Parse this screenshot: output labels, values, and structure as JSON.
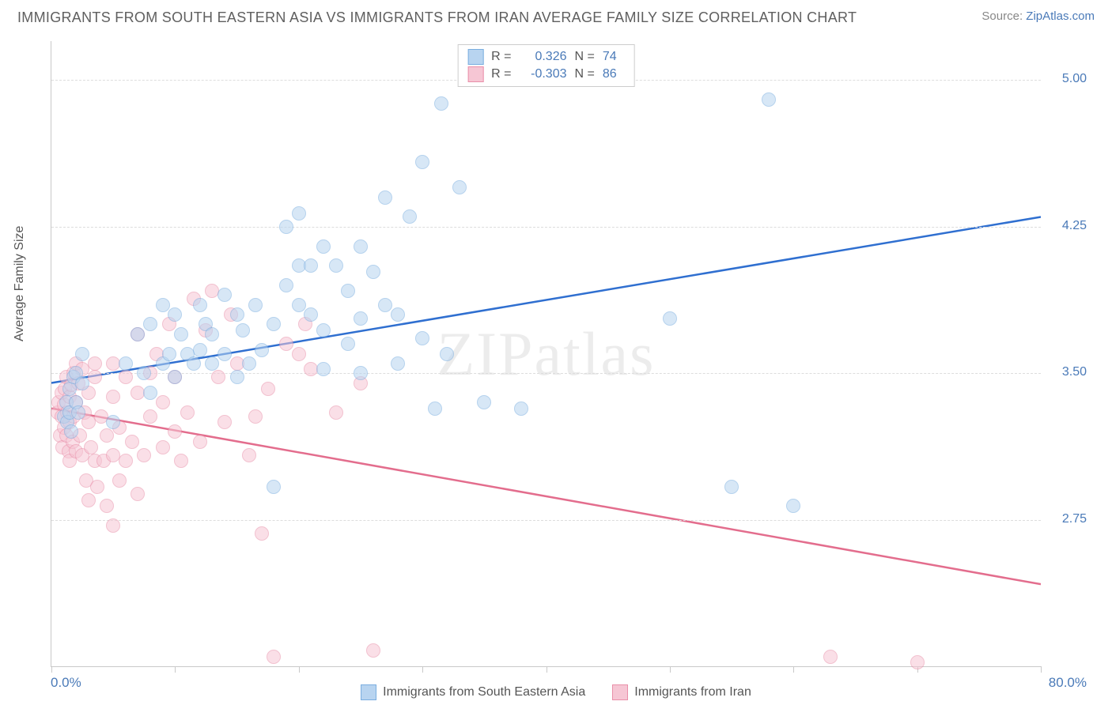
{
  "header": {
    "title": "IMMIGRANTS FROM SOUTH EASTERN ASIA VS IMMIGRANTS FROM IRAN AVERAGE FAMILY SIZE CORRELATION CHART",
    "source_prefix": "Source: ",
    "source_link": "ZipAtlas.com"
  },
  "axes": {
    "y_label": "Average Family Size",
    "x_min_label": "0.0%",
    "x_max_label": "80.0%",
    "x_min": 0,
    "x_max": 80,
    "y_min": 2.0,
    "y_max": 5.2,
    "y_ticks": [
      2.75,
      3.5,
      4.25,
      5.0
    ],
    "y_tick_labels": [
      "2.75",
      "3.50",
      "4.25",
      "5.00"
    ],
    "x_ticks_pct": [
      0,
      10,
      20,
      30,
      40,
      50,
      60,
      70,
      80
    ],
    "grid_color": "#dddddd",
    "axis_color": "#c9c9c9",
    "tick_label_color": "#4a7ab8"
  },
  "watermark": "ZIPatlas",
  "series": {
    "sea": {
      "label": "Immigrants from South Eastern Asia",
      "fill_color": "#b8d4f0",
      "stroke_color": "#7aaee0",
      "line_color": "#2f6fd0",
      "fill_opacity": 0.55,
      "marker_radius": 9,
      "R": "0.326",
      "N": "74",
      "trend": {
        "x1": 0,
        "y1": 3.45,
        "x2": 80,
        "y2": 4.3
      },
      "points": [
        [
          1.0,
          3.28
        ],
        [
          1.2,
          3.35
        ],
        [
          1.3,
          3.25
        ],
        [
          1.5,
          3.3
        ],
        [
          1.5,
          3.42
        ],
        [
          1.6,
          3.2
        ],
        [
          1.8,
          3.48
        ],
        [
          2.0,
          3.35
        ],
        [
          2.0,
          3.5
        ],
        [
          2.2,
          3.3
        ],
        [
          2.5,
          3.45
        ],
        [
          2.5,
          3.6
        ],
        [
          5.0,
          3.25
        ],
        [
          6.0,
          3.55
        ],
        [
          7.0,
          3.7
        ],
        [
          7.5,
          3.5
        ],
        [
          8.0,
          3.4
        ],
        [
          8.0,
          3.75
        ],
        [
          9.0,
          3.55
        ],
        [
          9.0,
          3.85
        ],
        [
          9.5,
          3.6
        ],
        [
          10.0,
          3.48
        ],
        [
          10.0,
          3.8
        ],
        [
          10.5,
          3.7
        ],
        [
          11.0,
          3.6
        ],
        [
          11.5,
          3.55
        ],
        [
          12.0,
          3.62
        ],
        [
          12.0,
          3.85
        ],
        [
          12.5,
          3.75
        ],
        [
          13.0,
          3.55
        ],
        [
          13.0,
          3.7
        ],
        [
          14.0,
          3.6
        ],
        [
          14.0,
          3.9
        ],
        [
          15.0,
          3.48
        ],
        [
          15.0,
          3.8
        ],
        [
          15.5,
          3.72
        ],
        [
          16.0,
          3.55
        ],
        [
          16.5,
          3.85
        ],
        [
          17.0,
          3.62
        ],
        [
          18.0,
          3.75
        ],
        [
          18.0,
          2.92
        ],
        [
          19.0,
          3.95
        ],
        [
          19.0,
          4.25
        ],
        [
          20.0,
          3.85
        ],
        [
          20.0,
          4.05
        ],
        [
          20.0,
          4.32
        ],
        [
          21.0,
          3.8
        ],
        [
          21.0,
          4.05
        ],
        [
          22.0,
          3.72
        ],
        [
          22.0,
          3.52
        ],
        [
          22.0,
          4.15
        ],
        [
          23.0,
          4.05
        ],
        [
          24.0,
          3.65
        ],
        [
          24.0,
          3.92
        ],
        [
          25.0,
          3.5
        ],
        [
          25.0,
          3.78
        ],
        [
          25.0,
          4.15
        ],
        [
          26.0,
          4.02
        ],
        [
          27.0,
          3.85
        ],
        [
          27.0,
          4.4
        ],
        [
          28.0,
          3.55
        ],
        [
          28.0,
          3.8
        ],
        [
          29.0,
          4.3
        ],
        [
          30.0,
          3.68
        ],
        [
          30.0,
          4.58
        ],
        [
          31.0,
          3.32
        ],
        [
          31.5,
          4.88
        ],
        [
          32.0,
          3.6
        ],
        [
          33.0,
          4.45
        ],
        [
          35.0,
          3.35
        ],
        [
          38.0,
          3.32
        ],
        [
          50.0,
          3.78
        ],
        [
          55.0,
          2.92
        ],
        [
          58.0,
          4.9
        ],
        [
          60.0,
          2.82
        ]
      ]
    },
    "iran": {
      "label": "Immigrants from Iran",
      "fill_color": "#f6c6d4",
      "stroke_color": "#e98fa9",
      "line_color": "#e36d8d",
      "fill_opacity": 0.55,
      "marker_radius": 9,
      "R": "-0.303",
      "N": "86",
      "trend": {
        "x1": 0,
        "y1": 3.32,
        "x2": 80,
        "y2": 2.42
      },
      "points": [
        [
          0.5,
          3.3
        ],
        [
          0.6,
          3.35
        ],
        [
          0.7,
          3.18
        ],
        [
          0.8,
          3.28
        ],
        [
          0.8,
          3.4
        ],
        [
          0.9,
          3.12
        ],
        [
          1.0,
          3.34
        ],
        [
          1.0,
          3.22
        ],
        [
          1.1,
          3.42
        ],
        [
          1.2,
          3.18
        ],
        [
          1.2,
          3.48
        ],
        [
          1.3,
          3.3
        ],
        [
          1.4,
          3.1
        ],
        [
          1.5,
          3.38
        ],
        [
          1.5,
          3.25
        ],
        [
          1.5,
          3.05
        ],
        [
          1.6,
          3.44
        ],
        [
          1.7,
          3.15
        ],
        [
          1.8,
          3.5
        ],
        [
          1.8,
          3.28
        ],
        [
          2.0,
          3.55
        ],
        [
          2.0,
          3.1
        ],
        [
          2.0,
          3.35
        ],
        [
          2.2,
          3.45
        ],
        [
          2.3,
          3.18
        ],
        [
          2.5,
          3.08
        ],
        [
          2.5,
          3.52
        ],
        [
          2.7,
          3.3
        ],
        [
          2.8,
          2.95
        ],
        [
          3.0,
          3.4
        ],
        [
          3.0,
          3.25
        ],
        [
          3.0,
          2.85
        ],
        [
          3.2,
          3.12
        ],
        [
          3.5,
          3.48
        ],
        [
          3.5,
          3.55
        ],
        [
          3.5,
          3.05
        ],
        [
          3.7,
          2.92
        ],
        [
          4.0,
          3.28
        ],
        [
          4.2,
          3.05
        ],
        [
          4.5,
          3.18
        ],
        [
          4.5,
          2.82
        ],
        [
          5.0,
          3.38
        ],
        [
          5.0,
          3.55
        ],
        [
          5.0,
          3.08
        ],
        [
          5.0,
          2.72
        ],
        [
          5.5,
          3.22
        ],
        [
          5.5,
          2.95
        ],
        [
          6.0,
          3.48
        ],
        [
          6.0,
          3.05
        ],
        [
          6.5,
          3.15
        ],
        [
          7.0,
          3.4
        ],
        [
          7.0,
          3.7
        ],
        [
          7.0,
          2.88
        ],
        [
          7.5,
          3.08
        ],
        [
          8.0,
          3.28
        ],
        [
          8.0,
          3.5
        ],
        [
          8.5,
          3.6
        ],
        [
          9.0,
          3.12
        ],
        [
          9.0,
          3.35
        ],
        [
          9.5,
          3.75
        ],
        [
          10.0,
          3.2
        ],
        [
          10.0,
          3.48
        ],
        [
          10.5,
          3.05
        ],
        [
          11.0,
          3.3
        ],
        [
          11.5,
          3.88
        ],
        [
          12.0,
          3.15
        ],
        [
          12.5,
          3.72
        ],
        [
          13.0,
          3.92
        ],
        [
          13.5,
          3.48
        ],
        [
          14.0,
          3.25
        ],
        [
          14.5,
          3.8
        ],
        [
          15.0,
          3.55
        ],
        [
          16.0,
          3.08
        ],
        [
          16.5,
          3.28
        ],
        [
          17.0,
          2.68
        ],
        [
          17.5,
          3.42
        ],
        [
          18.0,
          2.05
        ],
        [
          19.0,
          3.65
        ],
        [
          20.0,
          3.6
        ],
        [
          20.5,
          3.75
        ],
        [
          21.0,
          3.52
        ],
        [
          23.0,
          3.3
        ],
        [
          25.0,
          3.45
        ],
        [
          26.0,
          2.08
        ],
        [
          63.0,
          2.05
        ],
        [
          70.0,
          2.02
        ]
      ]
    }
  },
  "legend_labels": {
    "r_prefix": "R =",
    "n_prefix": "N ="
  }
}
